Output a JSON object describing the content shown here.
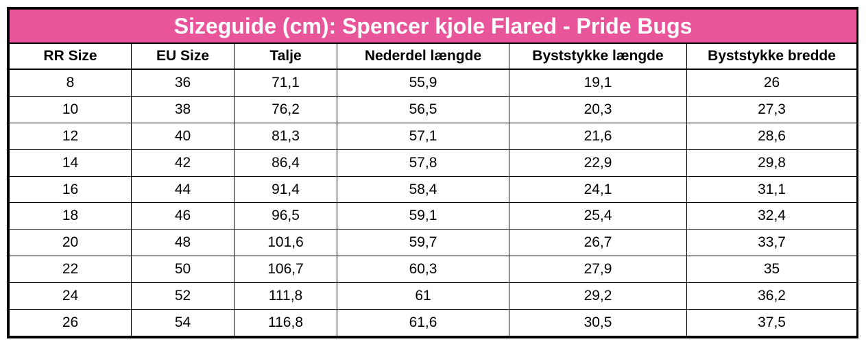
{
  "title": "Sizeguide (cm): Spencer kjole Flared - Pride Bugs",
  "colors": {
    "title_background": "#e8559a",
    "title_text": "#ffffff",
    "border": "#000000"
  },
  "headers": [
    "RR Size",
    "EU Size",
    "Talje",
    "Nederdel længde",
    "Byststykke længde",
    "Byststykke bredde"
  ],
  "rows": [
    [
      "8",
      "36",
      "71,1",
      "55,9",
      "19,1",
      "26"
    ],
    [
      "10",
      "38",
      "76,2",
      "56,5",
      "20,3",
      "27,3"
    ],
    [
      "12",
      "40",
      "81,3",
      "57,1",
      "21,6",
      "28,6"
    ],
    [
      "14",
      "42",
      "86,4",
      "57,8",
      "22,9",
      "29,8"
    ],
    [
      "16",
      "44",
      "91,4",
      "58,4",
      "24,1",
      "31,1"
    ],
    [
      "18",
      "46",
      "96,5",
      "59,1",
      "25,4",
      "32,4"
    ],
    [
      "20",
      "48",
      "101,6",
      "59,7",
      "26,7",
      "33,7"
    ],
    [
      "22",
      "50",
      "106,7",
      "60,3",
      "27,9",
      "35"
    ],
    [
      "24",
      "52",
      "111,8",
      "61",
      "29,2",
      "36,2"
    ],
    [
      "26",
      "54",
      "116,8",
      "61,6",
      "30,5",
      "37,5"
    ]
  ]
}
